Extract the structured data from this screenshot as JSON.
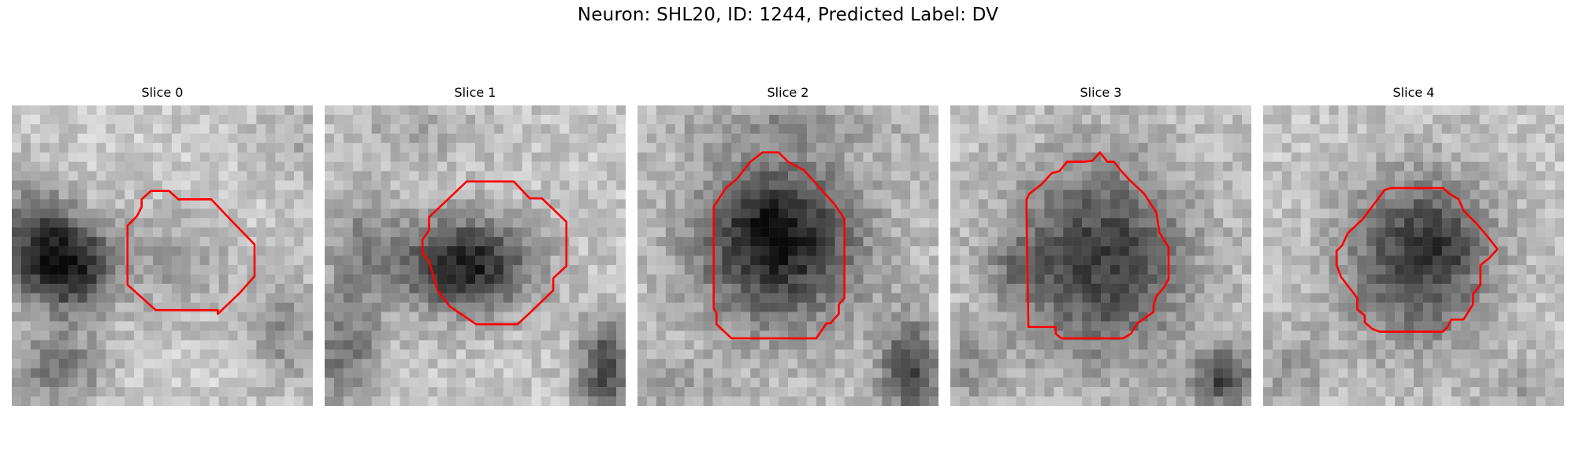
{
  "figure": {
    "title": "Neuron: SHL20, ID: 1244, Predicted Label: DV",
    "contour_color": "#ff0000"
  },
  "panels": [
    {
      "title": "Slice 0"
    },
    {
      "title": "Slice 1"
    },
    {
      "title": "Slice 2"
    },
    {
      "title": "Slice 3"
    },
    {
      "title": "Slice 4"
    }
  ]
}
